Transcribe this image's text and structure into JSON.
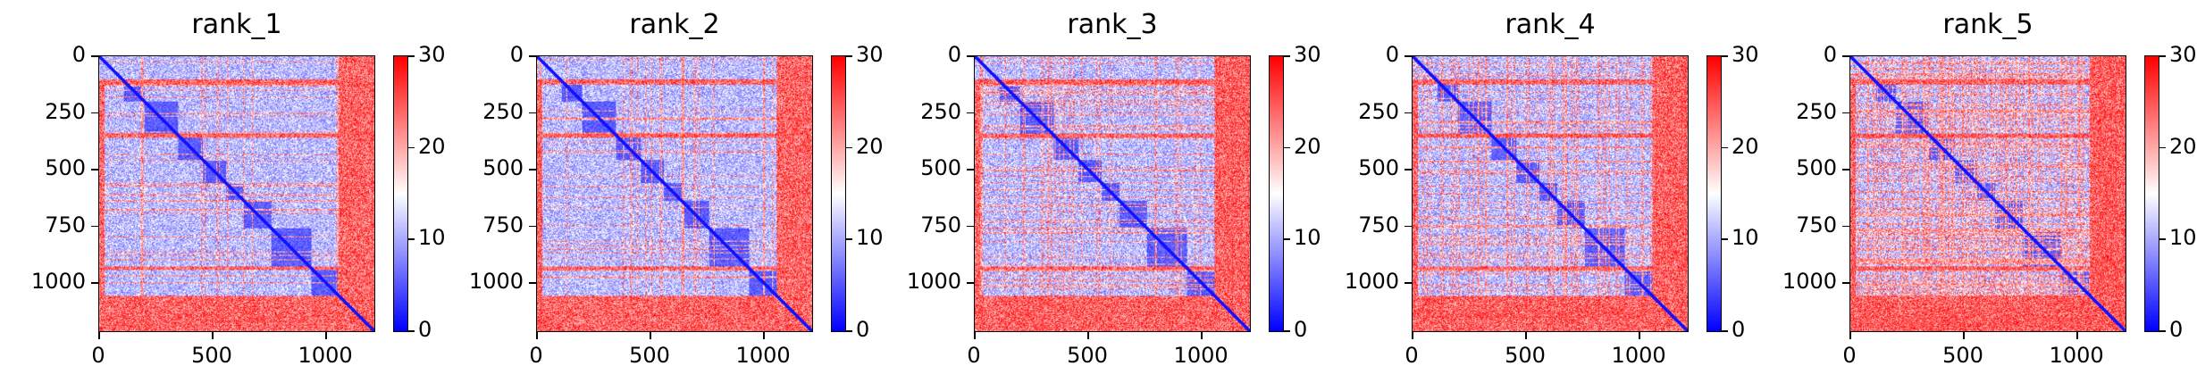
{
  "chart_data": [
    {
      "type": "heatmap",
      "title": "rank_1",
      "xlim": [
        0,
        1220
      ],
      "ylim": [
        1220,
        0
      ],
      "xticks": [
        "0",
        "500",
        "1000"
      ],
      "yticks": [
        "0",
        "250",
        "500",
        "750",
        "1000"
      ],
      "colorbar": {
        "range": [
          0,
          30
        ],
        "ticks": [
          "0",
          "10",
          "20",
          "30"
        ],
        "colormap": "bwr"
      }
    },
    {
      "type": "heatmap",
      "title": "rank_2",
      "xlim": [
        0,
        1220
      ],
      "ylim": [
        1220,
        0
      ],
      "xticks": [
        "0",
        "500",
        "1000"
      ],
      "yticks": [
        "0",
        "250",
        "500",
        "750",
        "1000"
      ],
      "colorbar": {
        "range": [
          0,
          30
        ],
        "ticks": [
          "0",
          "10",
          "20",
          "30"
        ],
        "colormap": "bwr"
      }
    },
    {
      "type": "heatmap",
      "title": "rank_3",
      "xlim": [
        0,
        1220
      ],
      "ylim": [
        1220,
        0
      ],
      "xticks": [
        "0",
        "500",
        "1000"
      ],
      "yticks": [
        "0",
        "250",
        "500",
        "750",
        "1000"
      ],
      "colorbar": {
        "range": [
          0,
          30
        ],
        "ticks": [
          "0",
          "10",
          "20",
          "30"
        ],
        "colormap": "bwr"
      }
    },
    {
      "type": "heatmap",
      "title": "rank_4",
      "xlim": [
        0,
        1220
      ],
      "ylim": [
        1220,
        0
      ],
      "xticks": [
        "0",
        "500",
        "1000"
      ],
      "yticks": [
        "0",
        "250",
        "500",
        "750",
        "1000"
      ],
      "colorbar": {
        "range": [
          0,
          30
        ],
        "ticks": [
          "0",
          "10",
          "20",
          "30"
        ],
        "colormap": "bwr"
      }
    },
    {
      "type": "heatmap",
      "title": "rank_5",
      "xlim": [
        0,
        1220
      ],
      "ylim": [
        1220,
        0
      ],
      "xticks": [
        "0",
        "500",
        "1000"
      ],
      "yticks": [
        "0",
        "250",
        "500",
        "750",
        "1000"
      ],
      "colorbar": {
        "range": [
          0,
          30
        ],
        "ticks": [
          "0",
          "10",
          "20",
          "30"
        ],
        "colormap": "bwr"
      }
    }
  ],
  "colors": {
    "low": "#0000ff",
    "mid": "#ffffff",
    "high": "#ff0000"
  }
}
